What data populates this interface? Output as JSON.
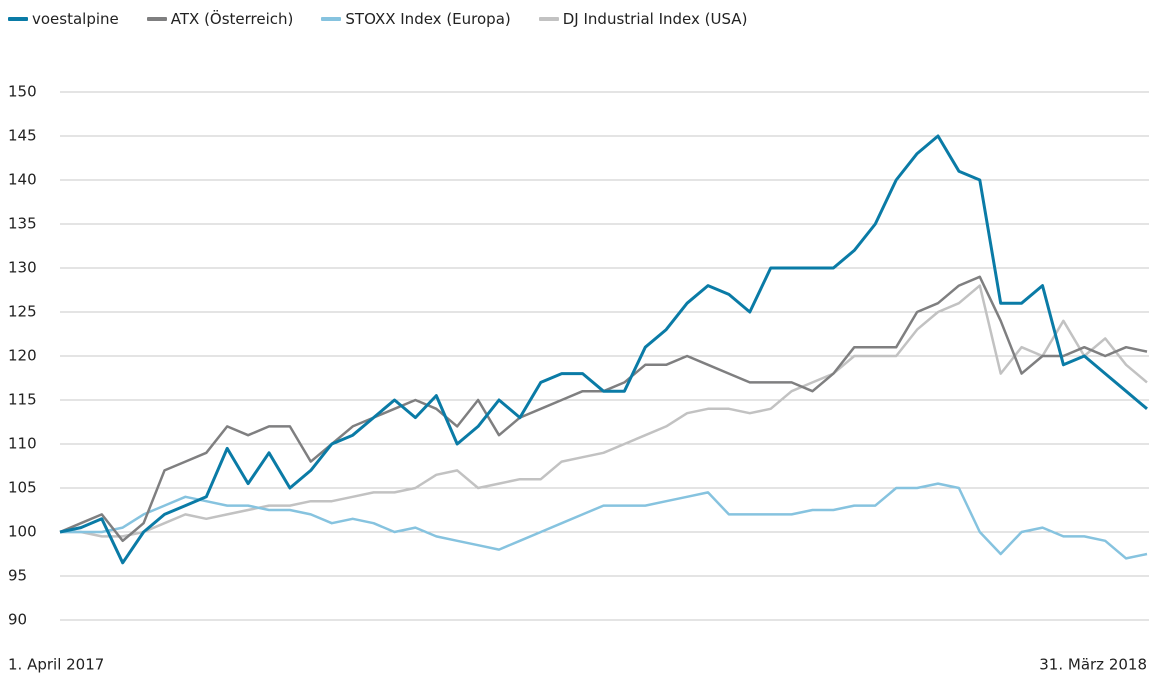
{
  "chart_data": {
    "type": "line",
    "categories": [
      "1. April 2017",
      null,
      null,
      null,
      null,
      null,
      null,
      null,
      null,
      null,
      null,
      null,
      null,
      null,
      null,
      null,
      null,
      null,
      null,
      null,
      null,
      null,
      null,
      null,
      null,
      null,
      null,
      null,
      null,
      null,
      null,
      null,
      null,
      null,
      null,
      null,
      null,
      null,
      null,
      null,
      null,
      null,
      null,
      null,
      null,
      null,
      null,
      null,
      null,
      null,
      null,
      null,
      "31. März 2018"
    ],
    "series": [
      {
        "name": "voestalpine",
        "color": "#0a7ba6",
        "values": [
          100,
          100.5,
          101.5,
          96.5,
          100,
          102,
          103,
          104,
          109.5,
          105.5,
          109,
          105,
          107,
          110,
          111,
          113,
          115,
          113,
          115.5,
          110,
          112,
          115,
          113,
          117,
          118,
          118,
          116,
          116,
          121,
          123,
          126,
          128,
          127,
          125,
          130,
          130,
          130,
          130,
          132,
          135,
          140,
          143,
          145,
          141,
          140,
          126,
          126,
          128,
          119,
          120,
          118,
          116,
          114
        ]
      },
      {
        "name": "ATX (Österreich)",
        "color": "#7f7f80",
        "values": [
          100,
          101,
          102,
          99,
          101,
          107,
          108,
          109,
          112,
          111,
          112,
          112,
          108,
          110,
          112,
          113,
          114,
          115,
          114,
          112,
          115,
          111,
          113,
          114,
          115,
          116,
          116,
          117,
          119,
          119,
          120,
          119,
          118,
          117,
          117,
          117,
          116,
          118,
          121,
          121,
          121,
          125,
          126,
          128,
          129,
          124,
          118,
          120,
          120,
          121,
          120,
          121,
          120.5
        ]
      },
      {
        "name": "STOXX Index (Europa)",
        "color": "#86c3df",
        "values": [
          100,
          100,
          100,
          100.5,
          102,
          103,
          104,
          103.5,
          103,
          103,
          102.5,
          102.5,
          102,
          101,
          101.5,
          101,
          100,
          100.5,
          99.5,
          99,
          98.5,
          98,
          99,
          100,
          101,
          102,
          103,
          103,
          103,
          103.5,
          104,
          104.5,
          102,
          102,
          102,
          102,
          102.5,
          102.5,
          103,
          103,
          105,
          105,
          105.5,
          105,
          100,
          97.5,
          100,
          100.5,
          99.5,
          99.5,
          99,
          97,
          97.5
        ]
      },
      {
        "name": "DJ Industrial Index (USA)",
        "color": "#c2c2c2",
        "values": [
          100,
          100,
          99.5,
          99.5,
          100,
          101,
          102,
          101.5,
          102,
          102.5,
          103,
          103,
          103.5,
          103.5,
          104,
          104.5,
          104.5,
          105,
          106.5,
          107,
          105,
          105.5,
          106,
          106,
          108,
          108.5,
          109,
          110,
          111,
          112,
          113.5,
          114,
          114,
          113.5,
          114,
          116,
          117,
          118,
          120,
          120,
          120,
          123,
          125,
          126,
          128,
          118,
          121,
          120,
          124,
          120,
          122,
          119,
          117
        ]
      }
    ],
    "ylim": [
      90,
      150
    ],
    "yticks": [
      90,
      95,
      100,
      105,
      110,
      115,
      120,
      125,
      130,
      135,
      140,
      145,
      150
    ],
    "grid": true
  }
}
